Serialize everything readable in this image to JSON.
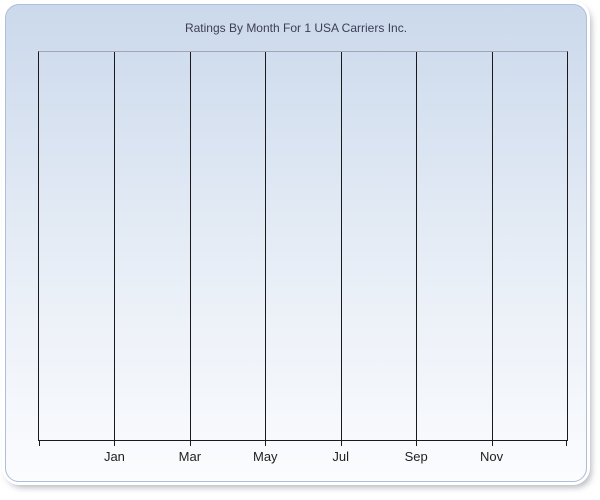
{
  "chart_data": {
    "type": "line",
    "title": "Ratings By Month For 1 USA Carriers Inc.",
    "x_tick_labels": [
      "Jan",
      "Mar",
      "May",
      "Jul",
      "Sep",
      "Nov"
    ],
    "x_intervals": 7,
    "series": [],
    "xlabel": "",
    "ylabel": "",
    "y_tick_labels": [],
    "grid": "vertical-only",
    "legend": "none",
    "notes": "plot area is empty - no data series rendered"
  },
  "colors": {
    "panel_border": "#aebfd9",
    "gradient_top": "#cbd9ec",
    "gradient_mid": "#e9eff7",
    "gradient_bottom": "#fbfcfe",
    "plot_top_border": "#a2a6ae",
    "axis_color": "#1a1a1c",
    "title_color": "#3d3d55",
    "label_color": "#1f1f1f",
    "page_background": "#ffffff"
  }
}
